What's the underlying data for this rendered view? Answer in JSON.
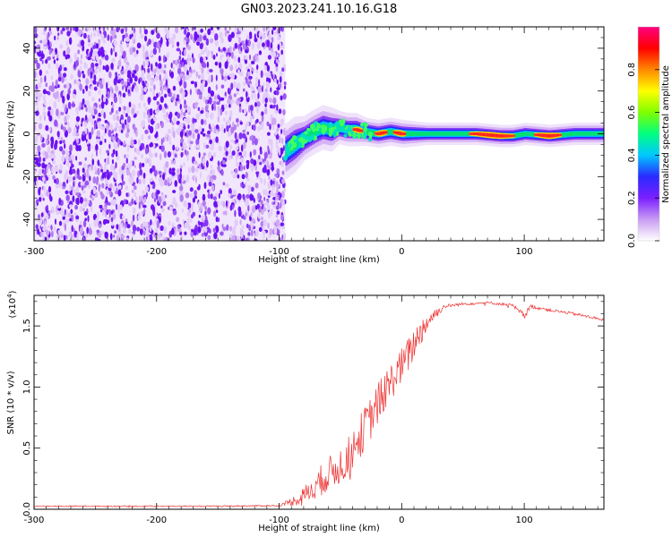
{
  "figure": {
    "title": "GN03.2023.241.10.16.G18"
  },
  "chart_data": [
    {
      "type": "heatmap",
      "ylabel": "Frequency (Hz)",
      "xlabel": "Height of straight line (km)",
      "xlim": [
        -300,
        165
      ],
      "ylim": [
        -50,
        50
      ],
      "x_ticks": [
        "-300",
        "-200",
        "-100",
        "0",
        "100"
      ],
      "y_ticks": [
        "-40",
        "-20",
        "0",
        "20",
        "40"
      ],
      "noise_region_x": [
        -300,
        -95
      ],
      "ridge": {
        "x": [
          -95,
          -88,
          -80,
          -72,
          -65,
          -58,
          -52,
          -45,
          -38,
          -30,
          -20,
          -10,
          0,
          20,
          40,
          60,
          80,
          90,
          100,
          120,
          140,
          165
        ],
        "y": [
          -8,
          -5,
          -2,
          1,
          3,
          2,
          3,
          2,
          2,
          1,
          0,
          1,
          0,
          0,
          0,
          0,
          -1,
          -1,
          0,
          -1,
          0,
          0
        ],
        "width": [
          5,
          5,
          4,
          4,
          4,
          4,
          3,
          3,
          3,
          2.5,
          2.5,
          2.5,
          2.5,
          2,
          2,
          2,
          2,
          2,
          2,
          2,
          2,
          2
        ]
      },
      "colorbar": {
        "label": "Normalized spectral amplitude",
        "range": [
          0,
          1
        ],
        "ticks": [
          "0.0",
          "0.2",
          "0.4",
          "0.6",
          "0.8"
        ],
        "colors": [
          "#ffffff",
          "#c99bf2",
          "#7a1fff",
          "#2a2aff",
          "#00c8ff",
          "#00ff80",
          "#7fff00",
          "#ffff00",
          "#ff8800",
          "#ff0000",
          "#ff0080"
        ]
      }
    },
    {
      "type": "line",
      "ylabel": "SNR (10 * v/v)",
      "xlabel": "Height of straight line (km)",
      "scale_note": "(x10",
      "scale_exp": "4",
      "scale_close": ")",
      "xlim": [
        -300,
        165
      ],
      "ylim": [
        0,
        17500
      ],
      "x_ticks": [
        "-300",
        "-200",
        "-100",
        "0",
        "100"
      ],
      "y_ticks": [
        "0.0",
        "0.5",
        "1.0",
        "1.5"
      ],
      "series": [
        {
          "color": "#ee3333",
          "x": [
            -300,
            -250,
            -200,
            -150,
            -100,
            -85,
            -75,
            -65,
            -55,
            -45,
            -35,
            -25,
            -15,
            -5,
            5,
            15,
            25,
            35,
            50,
            70,
            90,
            100,
            105,
            120,
            140,
            165
          ],
          "y": [
            250,
            250,
            250,
            250,
            300,
            800,
            1500,
            2500,
            3200,
            4000,
            5800,
            7500,
            9500,
            11000,
            12500,
            14500,
            15800,
            16600,
            16800,
            16900,
            16700,
            15800,
            16600,
            16300,
            16000,
            15500
          ],
          "noise": [
            50,
            50,
            50,
            50,
            60,
            500,
            900,
            1300,
            1500,
            1600,
            1800,
            1800,
            1700,
            1500,
            1500,
            1200,
            600,
            150,
            120,
            100,
            120,
            300,
            150,
            120,
            120,
            120
          ]
        }
      ]
    }
  ]
}
